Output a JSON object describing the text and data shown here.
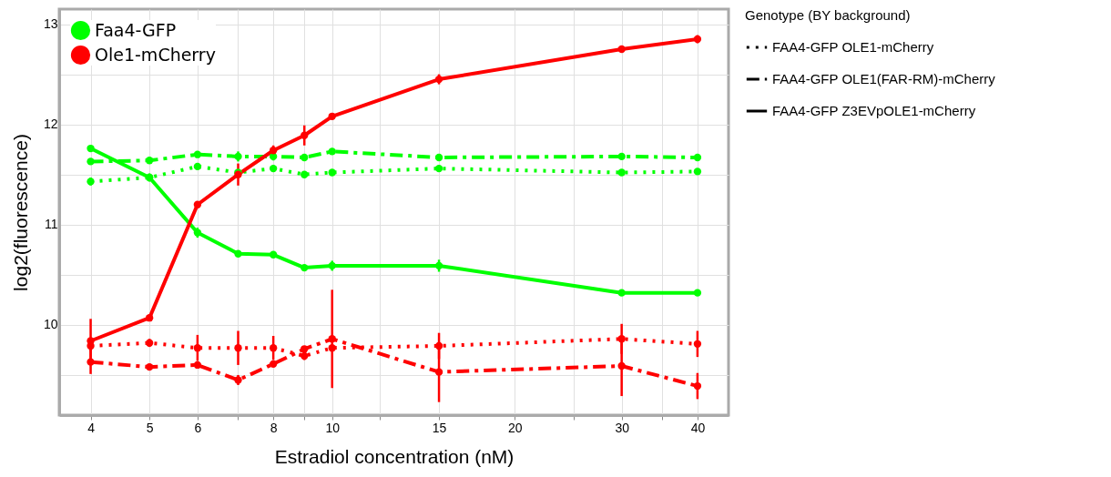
{
  "chart_data": {
    "type": "line",
    "xlabel": "Estradiol concentration (nM)",
    "ylabel": "log2(fluorescence)",
    "legend_title": "Genotype (BY background)",
    "annotations": [
      "FAA4-GFP OLE1-mCherry",
      "FAA4-GFP OLE1(FAR-RM)-mCherry",
      "FAA4-GFP Z3EVpOLE1-mCherry"
    ],
    "log": "x",
    "grid": true,
    "legend": "top left",
    "marker": "circle",
    "x": [
      4,
      5,
      6,
      7,
      8,
      9,
      10,
      15,
      30,
      40
    ],
    "xlim": [
      3.55,
      45
    ],
    "xticks": [
      4,
      5,
      6,
      {
        "value": 7,
        "label": null
      },
      8,
      {
        "value": 9,
        "label": null
      },
      10,
      {
        "value": 12,
        "label": null
      },
      15,
      20,
      {
        "value": 25,
        "label": null
      },
      30,
      {
        "value": 35,
        "label": null
      },
      40
    ],
    "ylim": [
      9.1,
      13.15
    ],
    "yticks": [
      {
        "value": 9.5,
        "label": null
      },
      10,
      {
        "value": 10.5,
        "label": null
      },
      11,
      {
        "value": 11.5,
        "label": null
      },
      12,
      {
        "value": 12.5,
        "label": null
      },
      13
    ],
    "series": [
      {
        "name": "Faa4-GFP",
        "color": "#00ff00",
        "line_style": "dotted",
        "values": [
          11.43,
          11.47,
          11.58,
          11.52,
          11.56,
          11.5,
          11.52,
          11.56,
          11.52,
          11.53
        ],
        "errors": [
          0.04,
          null,
          null,
          null,
          null,
          null,
          null,
          null,
          null,
          null
        ]
      },
      {
        "color": "#00ff00",
        "line_style": "dashdot",
        "values": [
          11.63,
          11.64,
          11.7,
          11.68,
          11.68,
          11.67,
          11.73,
          11.67,
          11.68,
          11.67
        ],
        "errors": [
          null,
          null,
          null,
          0.05,
          0.04,
          null,
          null,
          null,
          null,
          null
        ]
      },
      {
        "color": "#00ff00",
        "line_style": "solid",
        "values": [
          11.76,
          11.47,
          10.92,
          10.71,
          10.7,
          10.57,
          10.59,
          10.59,
          10.32,
          10.32
        ],
        "errors": [
          null,
          0.04,
          0.05,
          null,
          null,
          null,
          0.05,
          0.06,
          null,
          null
        ]
      },
      {
        "name": "Ole1-mCherry",
        "color": "#ff0000",
        "line_style": "dotted",
        "values": [
          9.79,
          9.82,
          9.77,
          9.77,
          9.77,
          9.69,
          9.77,
          9.79,
          9.86,
          9.81
        ],
        "errors": [
          0.05,
          0.04,
          0.13,
          0.17,
          0.12,
          0.04,
          null,
          0.13,
          0.15,
          0.13
        ]
      },
      {
        "color": "#ff0000",
        "line_style": "dashdot",
        "values": [
          9.63,
          9.58,
          9.6,
          9.45,
          9.61,
          9.76,
          9.86,
          9.53,
          9.59,
          9.39
        ],
        "errors": [
          0.12,
          null,
          null,
          0.05,
          null,
          null,
          0.49,
          0.3,
          0.3,
          0.13
        ]
      },
      {
        "color": "#ff0000",
        "line_style": "solid",
        "values": [
          9.84,
          10.07,
          11.2,
          11.5,
          11.74,
          11.89,
          12.08,
          12.45,
          12.75,
          12.85
        ],
        "errors": [
          0.22,
          null,
          null,
          0.11,
          0.05,
          0.1,
          null,
          0.05,
          null,
          0.04
        ]
      }
    ]
  }
}
